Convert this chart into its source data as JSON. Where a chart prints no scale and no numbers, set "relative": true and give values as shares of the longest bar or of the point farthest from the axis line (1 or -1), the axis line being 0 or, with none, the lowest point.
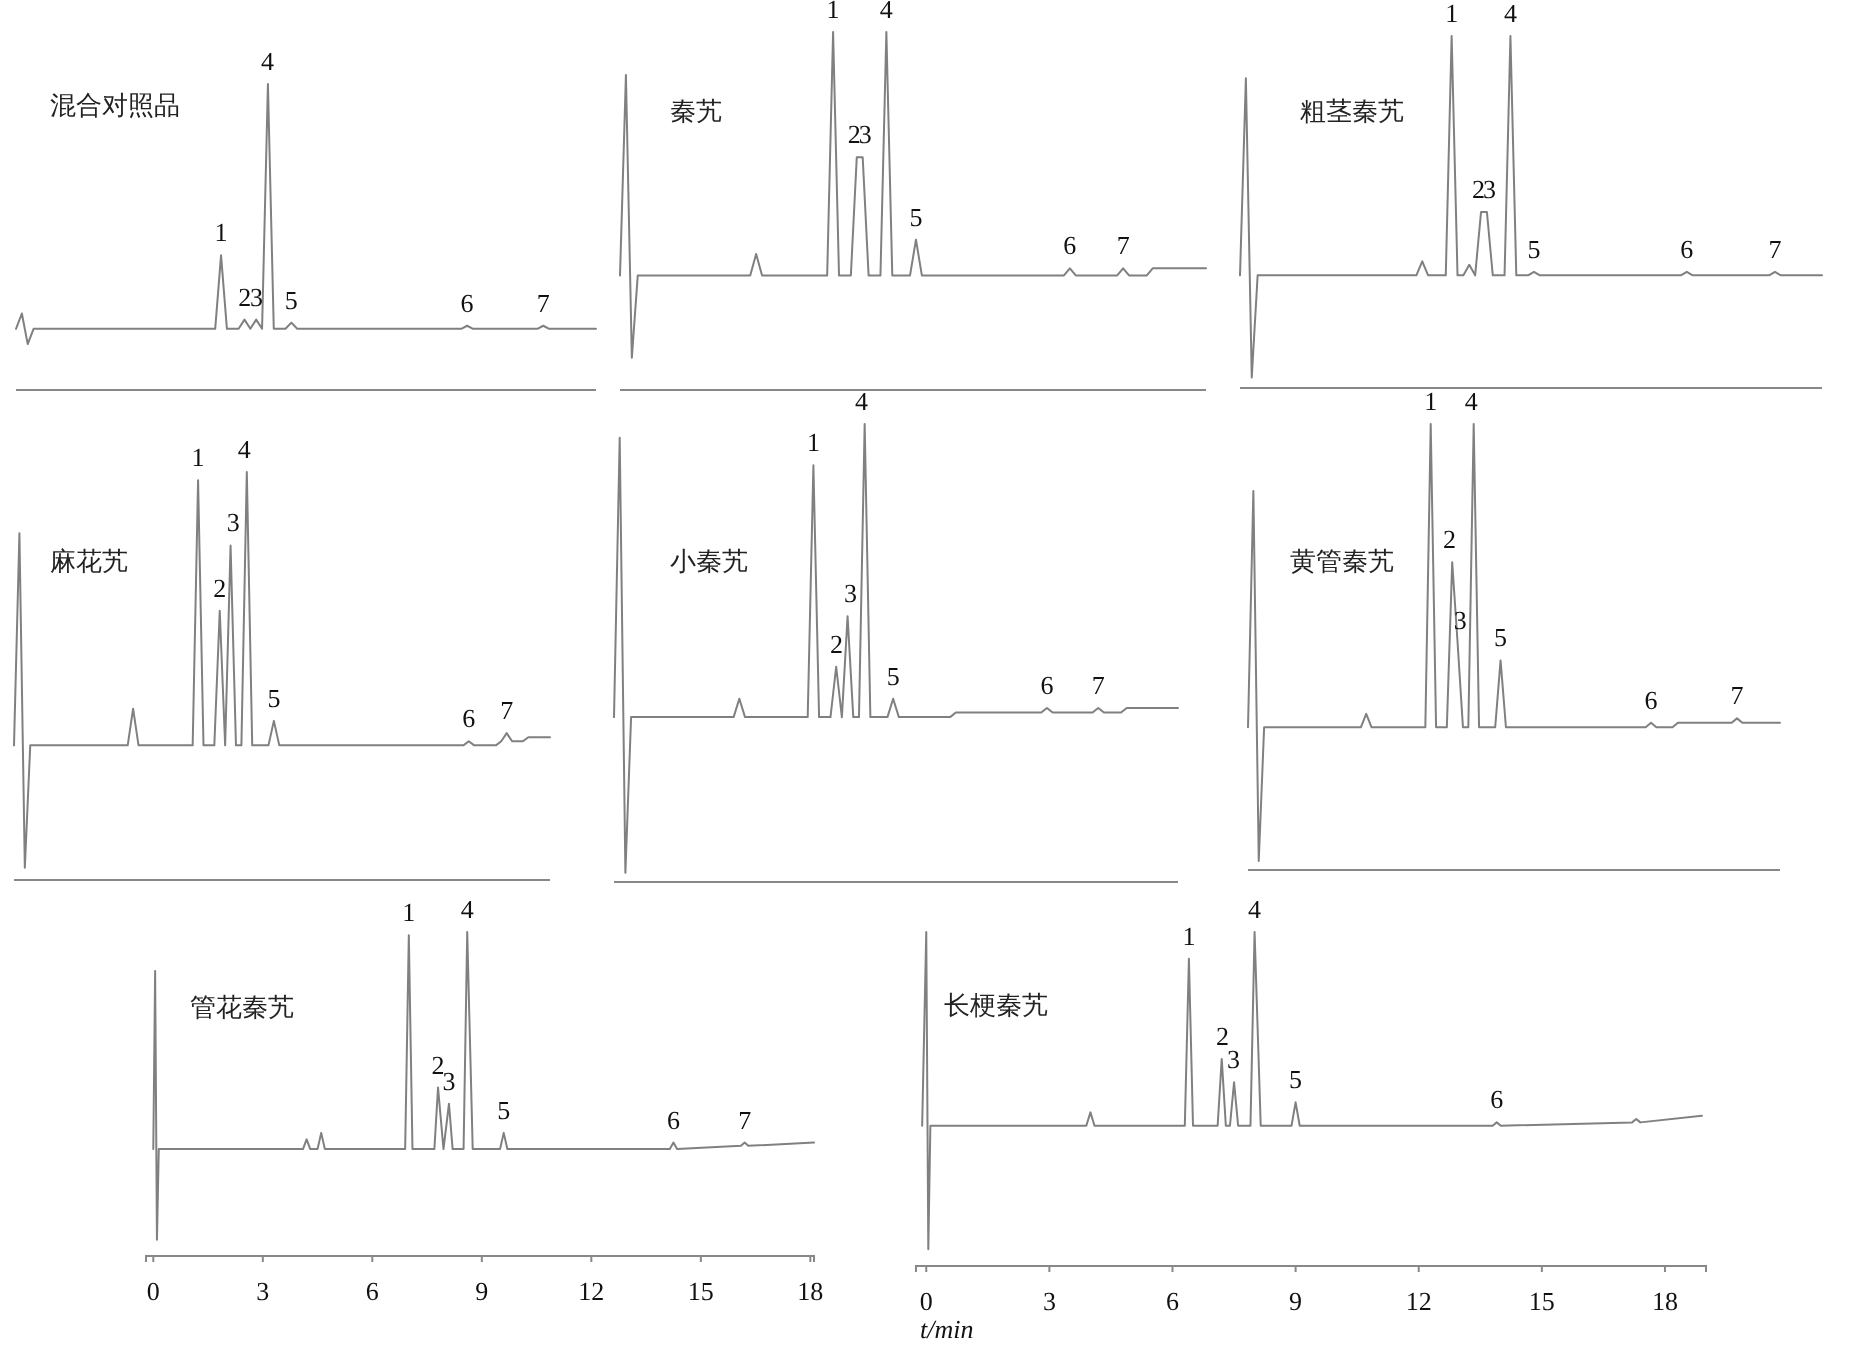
{
  "chart_data": [
    {
      "type": "line",
      "title": "混合对照品",
      "relative": true,
      "color": "#808080",
      "categories": [
        null,
        null,
        null,
        null,
        null,
        null,
        null,
        null,
        null,
        null,
        null,
        null,
        null,
        null,
        null,
        null,
        null,
        null,
        null,
        null,
        null,
        null,
        null,
        null,
        null,
        null,
        null,
        null,
        null,
        null,
        null,
        null,
        null,
        null,
        null,
        null,
        null,
        null,
        null,
        null,
        null,
        null,
        null,
        null,
        null,
        null,
        null,
        null,
        null,
        null,
        null,
        null,
        null,
        null,
        null,
        null,
        null,
        null,
        null,
        null,
        null,
        null,
        null,
        null,
        null,
        null,
        null,
        null,
        null,
        null,
        null,
        null,
        null,
        null,
        null,
        null,
        null,
        null,
        null,
        null,
        null,
        null,
        null,
        null,
        null,
        null,
        null,
        null,
        null,
        null,
        null,
        null,
        null,
        null,
        null,
        null,
        null,
        null,
        null,
        null
      ],
      "values": [
        0.2,
        0.25,
        0.15,
        0.2,
        0.2,
        0.2,
        0.2,
        0.2,
        0.2,
        0.2,
        0.2,
        0.2,
        0.2,
        0.2,
        0.2,
        0.2,
        0.2,
        0.2,
        0.2,
        0.2,
        0.2,
        0.2,
        0.2,
        0.2,
        0.2,
        0.2,
        0.2,
        0.2,
        0.2,
        0.2,
        0.2,
        0.2,
        0.2,
        0.2,
        0.2,
        0.44,
        0.2,
        0.2,
        0.2,
        0.23,
        0.2,
        0.23,
        0.2,
        1,
        0.2,
        0.2,
        0.2,
        0.22,
        0.2,
        0.2,
        0.2,
        0.2,
        0.2,
        0.2,
        0.2,
        0.2,
        0.2,
        0.2,
        0.2,
        0.2,
        0.2,
        0.2,
        0.2,
        0.2,
        0.2,
        0.2,
        0.2,
        0.2,
        0.2,
        0.2,
        0.2,
        0.2,
        0.2,
        0.2,
        0.2,
        0.2,
        0.2,
        0.21,
        0.2,
        0.2,
        0.2,
        0.2,
        0.2,
        0.2,
        0.2,
        0.2,
        0.2,
        0.2,
        0.2,
        0.2,
        0.21,
        0.2,
        0.2,
        0.2,
        0.2,
        0.2,
        0.2,
        0.2,
        0.2,
        0.2
      ],
      "annotations": [
        {
          "text": "1",
          "y": 0.44
        },
        {
          "text": "2",
          "y": 0.23
        },
        {
          "text": "3",
          "y": 0.23
        },
        {
          "text": "4",
          "y": 1
        },
        {
          "text": "5",
          "y": 0.22
        },
        {
          "text": "6",
          "y": 0.21
        },
        {
          "text": "7",
          "y": 0.21
        }
      ]
    },
    {
      "type": "line",
      "title": "秦艽",
      "relative": true,
      "color": "#808080",
      "categories": [
        null,
        null,
        null,
        null,
        null,
        null,
        null,
        null,
        null,
        null,
        null,
        null,
        null,
        null,
        null,
        null,
        null,
        null,
        null,
        null,
        null,
        null,
        null,
        null,
        null,
        null,
        null,
        null,
        null,
        null,
        null,
        null,
        null,
        null,
        null,
        null,
        null,
        null,
        null,
        null,
        null,
        null,
        null,
        null,
        null,
        null,
        null,
        null,
        null,
        null,
        null,
        null,
        null,
        null,
        null,
        null,
        null,
        null,
        null,
        null,
        null,
        null,
        null,
        null,
        null,
        null,
        null,
        null,
        null,
        null,
        null,
        null,
        null,
        null,
        null,
        null,
        null,
        null,
        null,
        null,
        null,
        null,
        null,
        null,
        null,
        null,
        null,
        null,
        null,
        null,
        null,
        null,
        null,
        null,
        null,
        null,
        null,
        null,
        null,
        null
      ],
      "values": [
        0.32,
        0.88,
        0.09,
        0.32,
        0.32,
        0.32,
        0.32,
        0.32,
        0.32,
        0.32,
        0.32,
        0.32,
        0.32,
        0.32,
        0.32,
        0.32,
        0.32,
        0.32,
        0.32,
        0.32,
        0.32,
        0.32,
        0.32,
        0.38,
        0.32,
        0.32,
        0.32,
        0.32,
        0.32,
        0.32,
        0.32,
        0.32,
        0.32,
        0.32,
        0.32,
        0.32,
        1,
        0.32,
        0.32,
        0.32,
        0.65,
        0.65,
        0.32,
        0.32,
        0.32,
        1,
        0.32,
        0.32,
        0.32,
        0.32,
        0.42,
        0.32,
        0.32,
        0.32,
        0.32,
        0.32,
        0.32,
        0.32,
        0.32,
        0.32,
        0.32,
        0.32,
        0.32,
        0.32,
        0.32,
        0.32,
        0.32,
        0.32,
        0.32,
        0.32,
        0.32,
        0.32,
        0.32,
        0.32,
        0.32,
        0.32,
        0.34,
        0.32,
        0.32,
        0.32,
        0.32,
        0.32,
        0.32,
        0.32,
        0.32,
        0.34,
        0.32,
        0.32,
        0.32,
        0.32,
        0.34,
        0.34,
        0.34,
        0.34,
        0.34,
        0.34,
        0.34,
        0.34,
        0.34,
        0.34
      ],
      "annotations": [
        {
          "text": "1",
          "y": 1
        },
        {
          "text": "2",
          "y": 0.65
        },
        {
          "text": "3",
          "y": 0.65
        },
        {
          "text": "4",
          "y": 1
        },
        {
          "text": "5",
          "y": 0.42
        },
        {
          "text": "6",
          "y": 0.34
        },
        {
          "text": "7",
          "y": 0.34
        }
      ]
    },
    {
      "type": "line",
      "title": "粗茎秦艽",
      "relative": true,
      "color": "#808080",
      "categories": [
        null,
        null,
        null,
        null,
        null,
        null,
        null,
        null,
        null,
        null,
        null,
        null,
        null,
        null,
        null,
        null,
        null,
        null,
        null,
        null,
        null,
        null,
        null,
        null,
        null,
        null,
        null,
        null,
        null,
        null,
        null,
        null,
        null,
        null,
        null,
        null,
        null,
        null,
        null,
        null,
        null,
        null,
        null,
        null,
        null,
        null,
        null,
        null,
        null,
        null,
        null,
        null,
        null,
        null,
        null,
        null,
        null,
        null,
        null,
        null,
        null,
        null,
        null,
        null,
        null,
        null,
        null,
        null,
        null,
        null,
        null,
        null,
        null,
        null,
        null,
        null,
        null,
        null,
        null,
        null,
        null,
        null,
        null,
        null,
        null,
        null,
        null,
        null,
        null,
        null,
        null,
        null,
        null,
        null,
        null,
        null,
        null,
        null,
        null,
        null
      ],
      "values": [
        0.32,
        0.88,
        0.03,
        0.32,
        0.32,
        0.32,
        0.32,
        0.32,
        0.32,
        0.32,
        0.32,
        0.32,
        0.32,
        0.32,
        0.32,
        0.32,
        0.32,
        0.32,
        0.32,
        0.32,
        0.32,
        0.32,
        0.32,
        0.32,
        0.32,
        0.32,
        0.32,
        0.32,
        0.32,
        0.32,
        0.32,
        0.36,
        0.32,
        0.32,
        0.32,
        0.32,
        1,
        0.32,
        0.32,
        0.35,
        0.32,
        0.5,
        0.5,
        0.32,
        0.32,
        0.32,
        1,
        0.32,
        0.32,
        0.32,
        0.33,
        0.32,
        0.32,
        0.32,
        0.32,
        0.32,
        0.32,
        0.32,
        0.32,
        0.32,
        0.32,
        0.32,
        0.32,
        0.32,
        0.32,
        0.32,
        0.32,
        0.32,
        0.32,
        0.32,
        0.32,
        0.32,
        0.32,
        0.32,
        0.32,
        0.32,
        0.33,
        0.32,
        0.32,
        0.32,
        0.32,
        0.32,
        0.32,
        0.32,
        0.32,
        0.32,
        0.32,
        0.32,
        0.32,
        0.32,
        0.32,
        0.33,
        0.32,
        0.32,
        0.32,
        0.32,
        0.32,
        0.32,
        0.32,
        0.32
      ],
      "annotations": [
        {
          "text": "1",
          "y": 1
        },
        {
          "text": "2",
          "y": 0.5
        },
        {
          "text": "3",
          "y": 0.5
        },
        {
          "text": "4",
          "y": 1
        },
        {
          "text": "5",
          "y": 0.33
        },
        {
          "text": "6",
          "y": 0.33
        },
        {
          "text": "7",
          "y": 0.33
        }
      ]
    },
    {
      "type": "line",
      "title": "麻花艽",
      "relative": true,
      "color": "#808080",
      "categories": [
        null,
        null,
        null,
        null,
        null,
        null,
        null,
        null,
        null,
        null,
        null,
        null,
        null,
        null,
        null,
        null,
        null,
        null,
        null,
        null,
        null,
        null,
        null,
        null,
        null,
        null,
        null,
        null,
        null,
        null,
        null,
        null,
        null,
        null,
        null,
        null,
        null,
        null,
        null,
        null,
        null,
        null,
        null,
        null,
        null,
        null,
        null,
        null,
        null,
        null,
        null,
        null,
        null,
        null,
        null,
        null,
        null,
        null,
        null,
        null,
        null,
        null,
        null,
        null,
        null,
        null,
        null,
        null,
        null,
        null,
        null,
        null,
        null,
        null,
        null,
        null,
        null,
        null,
        null,
        null,
        null,
        null,
        null,
        null,
        null,
        null,
        null,
        null,
        null,
        null,
        null,
        null,
        null,
        null,
        null,
        null,
        null,
        null,
        null,
        null
      ],
      "values": [
        0.33,
        0.85,
        0.03,
        0.33,
        0.33,
        0.33,
        0.33,
        0.33,
        0.33,
        0.33,
        0.33,
        0.33,
        0.33,
        0.33,
        0.33,
        0.33,
        0.33,
        0.33,
        0.33,
        0.33,
        0.33,
        0.33,
        0.42,
        0.33,
        0.33,
        0.33,
        0.33,
        0.33,
        0.33,
        0.33,
        0.33,
        0.33,
        0.33,
        0.33,
        0.98,
        0.33,
        0.33,
        0.33,
        0.66,
        0.33,
        0.82,
        0.33,
        0.33,
        1,
        0.33,
        0.33,
        0.33,
        0.33,
        0.39,
        0.33,
        0.33,
        0.33,
        0.33,
        0.33,
        0.33,
        0.33,
        0.33,
        0.33,
        0.33,
        0.33,
        0.33,
        0.33,
        0.33,
        0.33,
        0.33,
        0.33,
        0.33,
        0.33,
        0.33,
        0.33,
        0.33,
        0.33,
        0.33,
        0.33,
        0.33,
        0.33,
        0.33,
        0.33,
        0.33,
        0.33,
        0.33,
        0.33,
        0.33,
        0.33,
        0.34,
        0.33,
        0.33,
        0.33,
        0.33,
        0.33,
        0.34,
        0.36,
        0.34,
        0.34,
        0.34,
        0.35,
        0.35,
        0.35,
        0.35,
        0.35
      ],
      "annotations": [
        {
          "text": "1",
          "y": 0.98
        },
        {
          "text": "2",
          "y": 0.66
        },
        {
          "text": "3",
          "y": 0.82
        },
        {
          "text": "4",
          "y": 1
        },
        {
          "text": "5",
          "y": 0.39
        },
        {
          "text": "6",
          "y": 0.34
        },
        {
          "text": "7",
          "y": 0.36
        }
      ]
    },
    {
      "type": "line",
      "title": "小秦艽",
      "relative": true,
      "color": "#808080",
      "categories": [
        null,
        null,
        null,
        null,
        null,
        null,
        null,
        null,
        null,
        null,
        null,
        null,
        null,
        null,
        null,
        null,
        null,
        null,
        null,
        null,
        null,
        null,
        null,
        null,
        null,
        null,
        null,
        null,
        null,
        null,
        null,
        null,
        null,
        null,
        null,
        null,
        null,
        null,
        null,
        null,
        null,
        null,
        null,
        null,
        null,
        null,
        null,
        null,
        null,
        null,
        null,
        null,
        null,
        null,
        null,
        null,
        null,
        null,
        null,
        null,
        null,
        null,
        null,
        null,
        null,
        null,
        null,
        null,
        null,
        null,
        null,
        null,
        null,
        null,
        null,
        null,
        null,
        null,
        null,
        null,
        null,
        null,
        null,
        null,
        null,
        null,
        null,
        null,
        null,
        null,
        null,
        null,
        null,
        null,
        null,
        null,
        null,
        null,
        null,
        null
      ],
      "values": [
        0.36,
        0.97,
        0.02,
        0.36,
        0.36,
        0.36,
        0.36,
        0.36,
        0.36,
        0.36,
        0.36,
        0.36,
        0.36,
        0.36,
        0.36,
        0.36,
        0.36,
        0.36,
        0.36,
        0.36,
        0.36,
        0.36,
        0.4,
        0.36,
        0.36,
        0.36,
        0.36,
        0.36,
        0.36,
        0.36,
        0.36,
        0.36,
        0.36,
        0.36,
        0.36,
        0.91,
        0.36,
        0.36,
        0.36,
        0.47,
        0.36,
        0.58,
        0.36,
        0.36,
        1,
        0.36,
        0.36,
        0.36,
        0.36,
        0.4,
        0.36,
        0.36,
        0.36,
        0.36,
        0.36,
        0.36,
        0.36,
        0.36,
        0.36,
        0.36,
        0.37,
        0.37,
        0.37,
        0.37,
        0.37,
        0.37,
        0.37,
        0.37,
        0.37,
        0.37,
        0.37,
        0.37,
        0.37,
        0.37,
        0.37,
        0.37,
        0.38,
        0.37,
        0.37,
        0.37,
        0.37,
        0.37,
        0.37,
        0.37,
        0.37,
        0.38,
        0.37,
        0.37,
        0.37,
        0.37,
        0.38,
        0.38,
        0.38,
        0.38,
        0.38,
        0.38,
        0.38,
        0.38,
        0.38,
        0.38
      ],
      "annotations": [
        {
          "text": "1",
          "y": 0.91
        },
        {
          "text": "2",
          "y": 0.47
        },
        {
          "text": "3",
          "y": 0.58
        },
        {
          "text": "4",
          "y": 1
        },
        {
          "text": "5",
          "y": 0.4
        },
        {
          "text": "6",
          "y": 0.38
        },
        {
          "text": "7",
          "y": 0.38
        }
      ]
    },
    {
      "type": "line",
      "title": "黄管秦艽",
      "relative": true,
      "color": "#808080",
      "categories": [
        null,
        null,
        null,
        null,
        null,
        null,
        null,
        null,
        null,
        null,
        null,
        null,
        null,
        null,
        null,
        null,
        null,
        null,
        null,
        null,
        null,
        null,
        null,
        null,
        null,
        null,
        null,
        null,
        null,
        null,
        null,
        null,
        null,
        null,
        null,
        null,
        null,
        null,
        null,
        null,
        null,
        null,
        null,
        null,
        null,
        null,
        null,
        null,
        null,
        null,
        null,
        null,
        null,
        null,
        null,
        null,
        null,
        null,
        null,
        null,
        null,
        null,
        null,
        null,
        null,
        null,
        null,
        null,
        null,
        null,
        null,
        null,
        null,
        null,
        null,
        null,
        null,
        null,
        null,
        null,
        null,
        null,
        null,
        null,
        null,
        null,
        null,
        null,
        null,
        null,
        null,
        null,
        null,
        null,
        null,
        null,
        null,
        null,
        null,
        null
      ],
      "values": [
        0.32,
        0.85,
        0.02,
        0.32,
        0.32,
        0.32,
        0.32,
        0.32,
        0.32,
        0.32,
        0.32,
        0.32,
        0.32,
        0.32,
        0.32,
        0.32,
        0.32,
        0.32,
        0.32,
        0.32,
        0.32,
        0.32,
        0.35,
        0.32,
        0.32,
        0.32,
        0.32,
        0.32,
        0.32,
        0.32,
        0.32,
        0.32,
        0.32,
        0.32,
        1,
        0.32,
        0.32,
        0.32,
        0.69,
        0.51,
        0.32,
        0.32,
        1,
        0.32,
        0.32,
        0.32,
        0.32,
        0.47,
        0.32,
        0.32,
        0.32,
        0.32,
        0.32,
        0.32,
        0.32,
        0.32,
        0.32,
        0.32,
        0.32,
        0.32,
        0.32,
        0.32,
        0.32,
        0.32,
        0.32,
        0.32,
        0.32,
        0.32,
        0.32,
        0.32,
        0.32,
        0.32,
        0.32,
        0.32,
        0.32,
        0.33,
        0.32,
        0.32,
        0.32,
        0.32,
        0.33,
        0.33,
        0.33,
        0.33,
        0.33,
        0.33,
        0.33,
        0.33,
        0.33,
        0.33,
        0.33,
        0.34,
        0.33,
        0.33,
        0.33,
        0.33,
        0.33,
        0.33,
        0.33,
        0.33
      ],
      "annotations": [
        {
          "text": "1",
          "y": 1
        },
        {
          "text": "2",
          "y": 0.69
        },
        {
          "text": "3",
          "y": 0.51
        },
        {
          "text": "4",
          "y": 1
        },
        {
          "text": "5",
          "y": 0.47
        },
        {
          "text": "6",
          "y": 0.33
        },
        {
          "text": "7",
          "y": 0.34
        }
      ]
    },
    {
      "type": "line",
      "title": "管花秦艽",
      "relative": true,
      "color": "#808080",
      "xlim": [
        -0.2,
        18.1
      ],
      "xticks": [
        0,
        3,
        6,
        9,
        12,
        15,
        18
      ],
      "x": [
        0,
        0.05,
        0.1,
        0.15,
        4.1,
        4.2,
        4.3,
        4.5,
        4.6,
        4.7,
        6.9,
        7.0,
        7.1,
        7.7,
        7.8,
        7.95,
        8.1,
        8.2,
        8.5,
        8.6,
        8.75,
        9.5,
        9.6,
        9.7,
        14.15,
        14.25,
        14.35,
        16.1,
        16.2,
        16.3,
        18.1
      ],
      "values": [
        0.33,
        0.88,
        0.05,
        0.33,
        0.33,
        0.36,
        0.33,
        0.33,
        0.38,
        0.33,
        0.33,
        0.99,
        0.33,
        0.33,
        0.52,
        0.33,
        0.47,
        0.33,
        0.33,
        1,
        0.33,
        0.33,
        0.38,
        0.33,
        0.33,
        0.35,
        0.33,
        0.34,
        0.35,
        0.34,
        0.35
      ],
      "annotations": [
        {
          "text": "1",
          "x": 7.0,
          "y": 0.99
        },
        {
          "text": "2",
          "x": 7.8,
          "y": 0.52
        },
        {
          "text": "3",
          "x": 8.1,
          "y": 0.47
        },
        {
          "text": "4",
          "x": 8.6,
          "y": 1
        },
        {
          "text": "5",
          "x": 9.6,
          "y": 0.38
        },
        {
          "text": "6",
          "x": 14.25,
          "y": 0.35
        },
        {
          "text": "7",
          "x": 16.2,
          "y": 0.35
        }
      ]
    },
    {
      "type": "line",
      "title": "长梗秦艽",
      "relative": true,
      "color": "#808080",
      "xlim": [
        -0.25,
        19.0
      ],
      "xticks": [
        0,
        3,
        6,
        9,
        12,
        15,
        18
      ],
      "xlabel": "t/min",
      "x": [
        -0.1,
        0,
        0.05,
        0.1,
        3.9,
        4.0,
        4.1,
        6.3,
        6.4,
        6.5,
        7.1,
        7.2,
        7.3,
        7.4,
        7.5,
        7.6,
        7.9,
        8.0,
        8.15,
        8.9,
        9.0,
        9.1,
        13.8,
        13.9,
        14.0,
        17.2,
        17.3,
        17.4,
        18.9
      ],
      "values": [
        0.42,
        1,
        0.05,
        0.42,
        0.42,
        0.46,
        0.42,
        0.42,
        0.92,
        0.42,
        0.42,
        0.62,
        0.42,
        0.42,
        0.55,
        0.42,
        0.42,
        1,
        0.42,
        0.42,
        0.49,
        0.42,
        0.42,
        0.43,
        0.42,
        0.43,
        0.44,
        0.43,
        0.45
      ],
      "annotations": [
        {
          "text": "1",
          "x": 6.4,
          "y": 0.92
        },
        {
          "text": "2",
          "x": 7.2,
          "y": 0.62
        },
        {
          "text": "3",
          "x": 7.5,
          "y": 0.55
        },
        {
          "text": "4",
          "x": 8.0,
          "y": 1
        },
        {
          "text": "5",
          "x": 9.0,
          "y": 0.49
        },
        {
          "text": "6",
          "x": 13.9,
          "y": 0.43
        }
      ]
    }
  ]
}
